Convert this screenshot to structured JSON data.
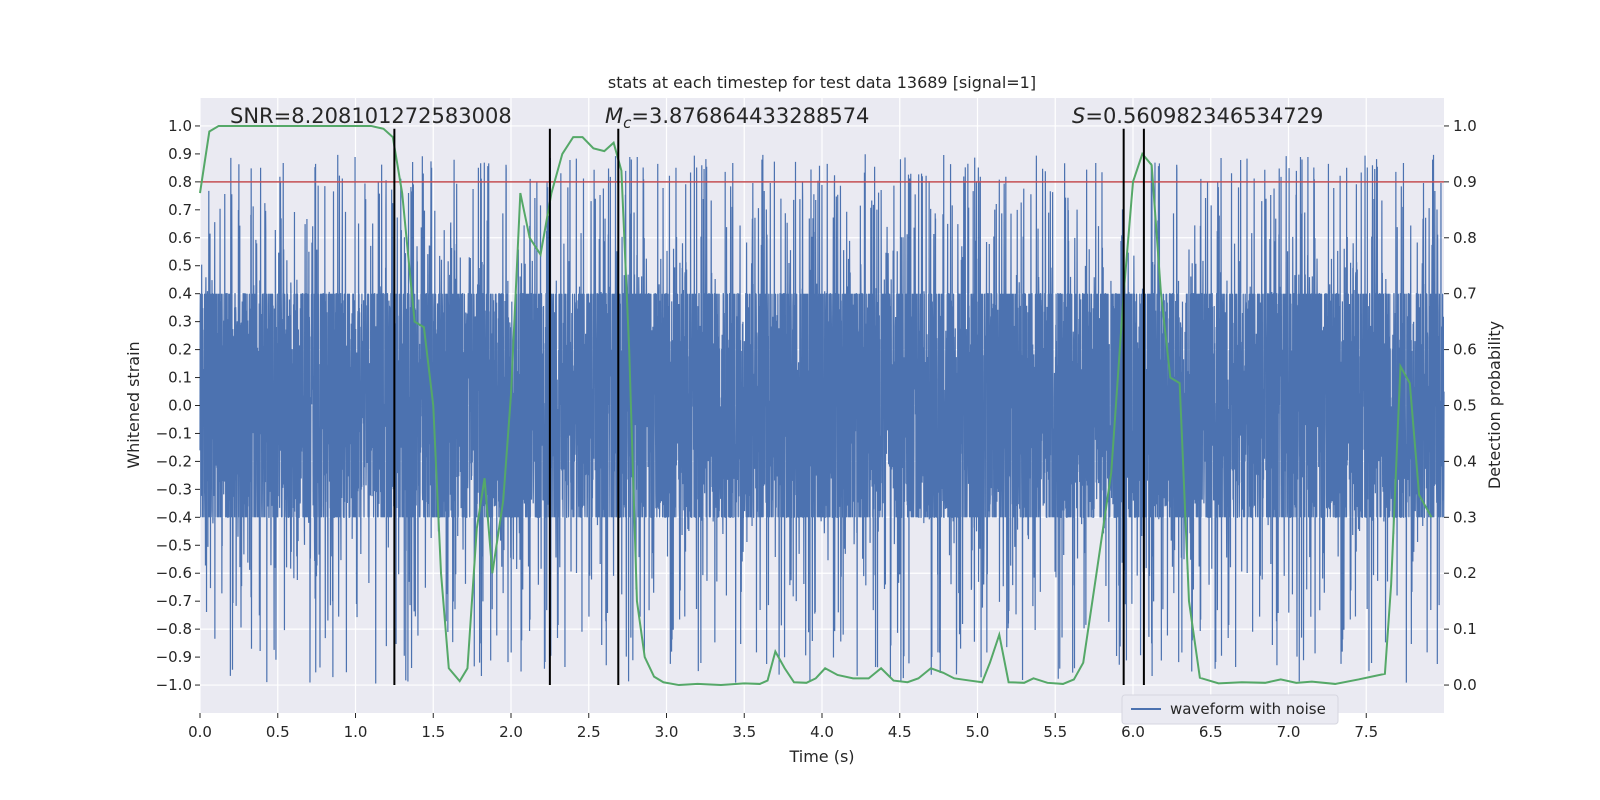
{
  "chart_data": {
    "type": "line",
    "title": "stats at each timestep for test data 13689 [signal=1]",
    "xlabel": "Time (s)",
    "ylabel_left": "Whitened strain",
    "ylabel_right": "Detection probability",
    "xlim": [
      0.0,
      8.0
    ],
    "ylim_left": [
      -1.1,
      1.1
    ],
    "ylim_right": [
      -0.05,
      1.05
    ],
    "x_ticks": [
      0.0,
      0.5,
      1.0,
      1.5,
      2.0,
      2.5,
      3.0,
      3.5,
      4.0,
      4.5,
      5.0,
      5.5,
      6.0,
      6.5,
      7.0,
      7.5
    ],
    "x_tick_labels": [
      "0.0",
      "0.5",
      "1.0",
      "1.5",
      "2.0",
      "2.5",
      "3.0",
      "3.5",
      "4.0",
      "4.5",
      "5.0",
      "5.5",
      "6.0",
      "6.5",
      "7.0",
      "7.5"
    ],
    "y_left_ticks": [
      1.0,
      0.9,
      0.8,
      0.7,
      0.6,
      0.5,
      0.4,
      0.3,
      0.2,
      0.1,
      0.0,
      -0.1,
      -0.2,
      -0.3,
      -0.4,
      -0.5,
      -0.6,
      -0.7,
      -0.8,
      -0.9,
      -1.0
    ],
    "y_left_tick_labels": [
      "1.0",
      "0.9",
      "0.8",
      "0.7",
      "0.6",
      "0.5",
      "0.4",
      "0.3",
      "0.2",
      "0.1",
      "0.0",
      "−0.1",
      "−0.2",
      "−0.3",
      "−0.4",
      "−0.5",
      "−0.6",
      "−0.7",
      "−0.8",
      "−0.9",
      "−1.0"
    ],
    "y_right_ticks": [
      1.0,
      0.9,
      0.8,
      0.7,
      0.6,
      0.5,
      0.4,
      0.3,
      0.2,
      0.1,
      0.0
    ],
    "y_right_tick_labels": [
      "1.0",
      "0.9",
      "0.8",
      "0.7",
      "0.6",
      "0.5",
      "0.4",
      "0.3",
      "0.2",
      "0.1",
      "0.0"
    ],
    "annotations": {
      "snr": "SNR=8.208101272583008",
      "mc_symbol": "M",
      "mc_subscript": "c",
      "mc_value": "=3.876864433288574",
      "s_symbol": "S",
      "s_value": "=0.560982346534729"
    },
    "waveform": {
      "name": "waveform with noise",
      "color": "#4c72b0",
      "sample_count": 8192,
      "typical_envelope": 0.4,
      "outlier_range": [
        -1.0,
        0.9
      ]
    },
    "threshold": {
      "value": 0.9,
      "color": "#c44e52"
    },
    "vertical_markers": {
      "times": [
        1.25,
        2.25,
        2.69,
        5.94,
        6.07
      ],
      "color": "#000000"
    },
    "probability": {
      "color": "#55a868",
      "points": [
        [
          0.0,
          0.88
        ],
        [
          0.06,
          0.99
        ],
        [
          0.12,
          1.0
        ],
        [
          0.4,
          1.0
        ],
        [
          0.8,
          1.0
        ],
        [
          1.1,
          1.0
        ],
        [
          1.18,
          0.995
        ],
        [
          1.24,
          0.98
        ],
        [
          1.3,
          0.88
        ],
        [
          1.38,
          0.65
        ],
        [
          1.44,
          0.64
        ],
        [
          1.5,
          0.5
        ],
        [
          1.55,
          0.2
        ],
        [
          1.6,
          0.03
        ],
        [
          1.67,
          0.007
        ],
        [
          1.72,
          0.03
        ],
        [
          1.78,
          0.28
        ],
        [
          1.83,
          0.37
        ],
        [
          1.88,
          0.2
        ],
        [
          1.95,
          0.33
        ],
        [
          2.0,
          0.52
        ],
        [
          2.06,
          0.88
        ],
        [
          2.12,
          0.8
        ],
        [
          2.19,
          0.77
        ],
        [
          2.26,
          0.88
        ],
        [
          2.33,
          0.95
        ],
        [
          2.4,
          0.98
        ],
        [
          2.46,
          0.98
        ],
        [
          2.53,
          0.96
        ],
        [
          2.6,
          0.955
        ],
        [
          2.66,
          0.97
        ],
        [
          2.71,
          0.92
        ],
        [
          2.76,
          0.6
        ],
        [
          2.81,
          0.15
        ],
        [
          2.86,
          0.05
        ],
        [
          2.92,
          0.015
        ],
        [
          2.98,
          0.005
        ],
        [
          3.08,
          0.0
        ],
        [
          3.2,
          0.002
        ],
        [
          3.35,
          0.0
        ],
        [
          3.5,
          0.003
        ],
        [
          3.6,
          0.002
        ],
        [
          3.65,
          0.008
        ],
        [
          3.7,
          0.06
        ],
        [
          3.76,
          0.03
        ],
        [
          3.82,
          0.005
        ],
        [
          3.9,
          0.004
        ],
        [
          3.96,
          0.012
        ],
        [
          4.02,
          0.03
        ],
        [
          4.1,
          0.018
        ],
        [
          4.2,
          0.012
        ],
        [
          4.3,
          0.012
        ],
        [
          4.38,
          0.03
        ],
        [
          4.46,
          0.008
        ],
        [
          4.55,
          0.005
        ],
        [
          4.62,
          0.012
        ],
        [
          4.7,
          0.03
        ],
        [
          4.78,
          0.022
        ],
        [
          4.85,
          0.012
        ],
        [
          4.95,
          0.008
        ],
        [
          5.03,
          0.005
        ],
        [
          5.08,
          0.04
        ],
        [
          5.14,
          0.09
        ],
        [
          5.2,
          0.005
        ],
        [
          5.3,
          0.004
        ],
        [
          5.36,
          0.012
        ],
        [
          5.45,
          0.004
        ],
        [
          5.55,
          0.002
        ],
        [
          5.62,
          0.01
        ],
        [
          5.68,
          0.04
        ],
        [
          5.76,
          0.19
        ],
        [
          5.86,
          0.38
        ],
        [
          5.94,
          0.7
        ],
        [
          6.0,
          0.9
        ],
        [
          6.06,
          0.95
        ],
        [
          6.12,
          0.93
        ],
        [
          6.18,
          0.7
        ],
        [
          6.24,
          0.55
        ],
        [
          6.3,
          0.54
        ],
        [
          6.36,
          0.15
        ],
        [
          6.43,
          0.013
        ],
        [
          6.55,
          0.003
        ],
        [
          6.7,
          0.005
        ],
        [
          6.85,
          0.004
        ],
        [
          6.95,
          0.01
        ],
        [
          7.05,
          0.004
        ],
        [
          7.15,
          0.006
        ],
        [
          7.3,
          0.002
        ],
        [
          7.45,
          0.01
        ],
        [
          7.55,
          0.016
        ],
        [
          7.62,
          0.02
        ],
        [
          7.66,
          0.18
        ],
        [
          7.72,
          0.57
        ],
        [
          7.78,
          0.54
        ],
        [
          7.84,
          0.34
        ],
        [
          7.92,
          0.3
        ]
      ]
    },
    "legend": {
      "label": "waveform with noise",
      "placement": "lower-right"
    },
    "style": {
      "background": "#eaeaf2",
      "grid": true,
      "grid_color": "#ffffff"
    }
  }
}
